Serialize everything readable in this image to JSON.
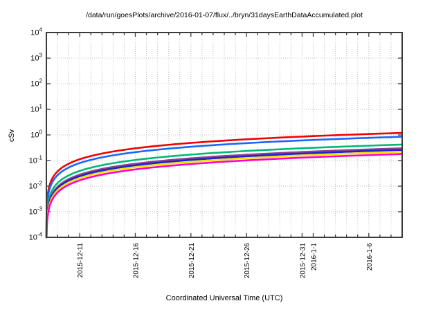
{
  "chart_data": {
    "type": "line",
    "title": "/data/run/goesPlots/archive/2016-01-07/flux/../bryn/31daysEarthDataAccumulated.plot",
    "xlabel": "Coordinated Universal Time (UTC)",
    "ylabel": "cSv",
    "y_scale": "log10",
    "ylim": [
      0.0001,
      10000
    ],
    "y_tick_exponents": [
      4,
      3,
      2,
      1,
      0,
      -1,
      -2,
      -3,
      -4
    ],
    "y_tick_base": "10",
    "grid": "dotted, vertical line every day, horizontal line every decade",
    "legend": "none",
    "x_axis": {
      "start_day_label": "2015-12-08",
      "span_days": 32,
      "minor_tick_every_days": 1,
      "ticks": [
        {
          "label": "2015-12-11",
          "day": 3
        },
        {
          "label": "2015-12-16",
          "day": 8
        },
        {
          "label": "2015-12-21",
          "day": 13
        },
        {
          "label": "2015-12-26",
          "day": 18
        },
        {
          "label": "2015-12-31",
          "day": 23
        },
        {
          "label": "2016-1-1",
          "day": 24
        },
        {
          "label": "2016-1-6",
          "day": 29
        }
      ]
    },
    "model": "accumulated dose: value(t_days) = end_value_cSv * t / span_days (steep rise from 1e-4 at left edge, flattening on log axis)",
    "series": [
      {
        "name": "red",
        "color": "#f20000",
        "end_value_cSv": 1.2,
        "values_at_ticks_cSv": [
          0.113,
          0.3,
          0.488,
          0.675,
          0.863,
          0.9,
          1.088
        ]
      },
      {
        "name": "blue",
        "color": "#1a66ff",
        "end_value_cSv": 0.85,
        "values_at_ticks_cSv": [
          0.08,
          0.213,
          0.345,
          0.478,
          0.611,
          0.638,
          0.77
        ]
      },
      {
        "name": "green",
        "color": "#00b878",
        "end_value_cSv": 0.42,
        "values_at_ticks_cSv": [
          0.039,
          0.105,
          0.171,
          0.236,
          0.302,
          0.315,
          0.381
        ]
      },
      {
        "name": "purple",
        "color": "#8b4090",
        "end_value_cSv": 0.3,
        "values_at_ticks_cSv": [
          0.028,
          0.075,
          0.122,
          0.169,
          0.216,
          0.225,
          0.272
        ]
      },
      {
        "name": "navy",
        "color": "#2222cc",
        "end_value_cSv": 0.26,
        "values_at_ticks_cSv": [
          0.024,
          0.065,
          0.106,
          0.146,
          0.187,
          0.195,
          0.236
        ]
      },
      {
        "name": "yellow",
        "color": "#f0e400",
        "end_value_cSv": 0.22,
        "values_at_ticks_cSv": [
          0.021,
          0.055,
          0.089,
          0.124,
          0.158,
          0.165,
          0.199
        ]
      },
      {
        "name": "magenta",
        "color": "#ff00cc",
        "end_value_cSv": 0.18,
        "values_at_ticks_cSv": [
          0.017,
          0.045,
          0.073,
          0.101,
          0.129,
          0.135,
          0.163
        ]
      }
    ],
    "frame_color": "#3a3a3a",
    "grid_color": "#c0c0c0"
  }
}
